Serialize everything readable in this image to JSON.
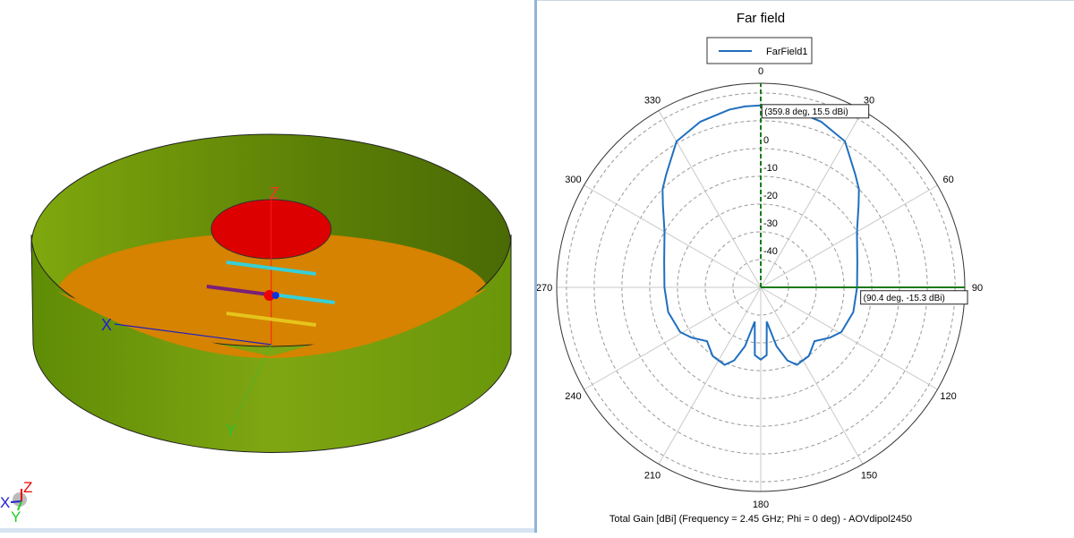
{
  "model_view": {
    "axis_labels": {
      "x": "X",
      "y": "Y",
      "z": "Z"
    },
    "triad_labels": {
      "x": "X",
      "y": "Y",
      "z": "Z"
    },
    "colors": {
      "wall": "#6f9a0c",
      "ground": "#d58300",
      "patch": "#dd0000",
      "director": "#37cfd6",
      "reflector": "#e6c41c",
      "dipole": "#7a1f7a"
    }
  },
  "chart_data": {
    "type": "polar",
    "title": "Far field",
    "legend": [
      {
        "name": "FarField1",
        "color": "#1f6fbf"
      }
    ],
    "legend_placement": "top-center",
    "angle_ticks": [
      0,
      30,
      60,
      90,
      120,
      150,
      180,
      210,
      240,
      270,
      300,
      330
    ],
    "radial_ticks": [
      0,
      -10,
      -20,
      -30,
      -40
    ],
    "radial_range": [
      -50,
      23.5
    ],
    "radial_unit": "dBi",
    "grid": true,
    "series": [
      {
        "name": "FarField1",
        "points_half": [
          [
            0,
            15.5
          ],
          [
            5,
            15.4
          ],
          [
            10,
            15
          ],
          [
            20,
            13.5
          ],
          [
            30,
            10.7
          ],
          [
            40,
            3
          ],
          [
            45,
            0
          ],
          [
            50,
            -4
          ],
          [
            60,
            -10
          ],
          [
            75,
            -14
          ],
          [
            90,
            -15.3
          ],
          [
            105,
            -15.5
          ],
          [
            119,
            -16.8
          ],
          [
            126,
            -19.2
          ],
          [
            135,
            -22.6
          ],
          [
            145,
            -19.8
          ],
          [
            155,
            -19.2
          ],
          [
            160,
            -22
          ],
          [
            165,
            -28
          ],
          [
            170,
            -37.5
          ],
          [
            175,
            -25.5
          ],
          [
            180,
            -24
          ]
        ],
        "symmetric": true
      }
    ],
    "markers": [
      {
        "angle": 359.8,
        "value": 15.5,
        "label": "(359.8 deg, 15.5 dBi)"
      },
      {
        "angle": 90.4,
        "value": -15.3,
        "label": "(90.4 deg, -15.3 dBi)"
      }
    ],
    "caption": "Total Gain [dBi] (Frequency = 2.45 GHz; Phi = 0 deg) - AOVdipol2450"
  }
}
